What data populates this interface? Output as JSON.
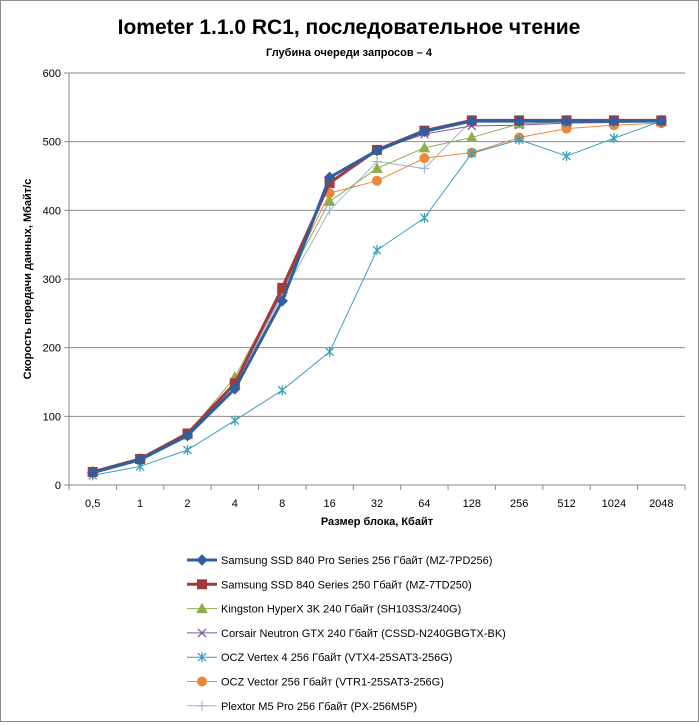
{
  "chart_data": {
    "type": "line",
    "title": "Iometer 1.1.0 RC1, последовательное чтение",
    "subtitle": "Глубина очереди запросов  – 4",
    "xlabel": "Размер блока, Кбайт",
    "ylabel": "Скорость передачи данных, Мбайт/с",
    "categories": [
      "0,5",
      "1",
      "2",
      "4",
      "8",
      "16",
      "32",
      "64",
      "128",
      "256",
      "512",
      "1024",
      "2048"
    ],
    "ylim": [
      0,
      600
    ],
    "yticks": [
      0,
      100,
      200,
      300,
      400,
      500,
      600
    ],
    "grid": "horizontal",
    "legend_position": "bottom",
    "series": [
      {
        "name": "Samsung SSD 840 Pro Series 256 Гбайт (MZ-7PD256)",
        "color": "#2e5f9e",
        "marker": "diamond",
        "width": 3,
        "values": [
          18,
          37,
          72,
          140,
          268,
          448,
          487,
          515,
          530,
          530,
          530,
          530,
          530
        ]
      },
      {
        "name": "Samsung SSD 840 Series 250 Гбайт (MZ-7TD250)",
        "color": "#a33b3a",
        "marker": "square",
        "width": 3,
        "values": [
          19,
          38,
          75,
          148,
          287,
          440,
          488,
          516,
          531,
          531,
          531,
          531,
          531
        ]
      },
      {
        "name": "Kingston HyperX  3K 240 Гбайт (SH103S3/240G)",
        "color": "#8fae4f",
        "marker": "triangle",
        "width": 1,
        "values": [
          20,
          38,
          74,
          157,
          285,
          413,
          461,
          491,
          506,
          526,
          529,
          529,
          529
        ]
      },
      {
        "name": "Corsair Neutron GTX 240 Гбайт (CSSD-N240GBGTX-BK)",
        "color": "#7a5ba3",
        "marker": "x",
        "width": 1,
        "values": [
          18,
          37,
          73,
          150,
          280,
          438,
          488,
          511,
          523,
          524,
          527,
          528,
          529
        ]
      },
      {
        "name": "OCZ Vertex  4 256 Гбайт (VTX4-25SAT3-256G)",
        "color": "#3b9fbf",
        "marker": "star",
        "width": 1,
        "values": [
          14,
          27,
          51,
          94,
          138,
          194,
          342,
          389,
          483,
          503,
          479,
          505,
          530
        ]
      },
      {
        "name": "OCZ Vector  256 Гбайт (VTR1-25SAT3-256G)",
        "color": "#e8883a",
        "marker": "circle",
        "width": 1,
        "values": [
          19,
          37,
          72,
          150,
          284,
          425,
          443,
          476,
          484,
          506,
          519,
          524,
          527
        ]
      },
      {
        "name": "Plextor M5 Pro 256 Гбайт (PX-256M5P)",
        "color": "#9bb3d6",
        "marker": "plus",
        "width": 1,
        "values": [
          17,
          35,
          70,
          146,
          276,
          400,
          471,
          461,
          531,
          531,
          532,
          532,
          532
        ]
      }
    ]
  }
}
